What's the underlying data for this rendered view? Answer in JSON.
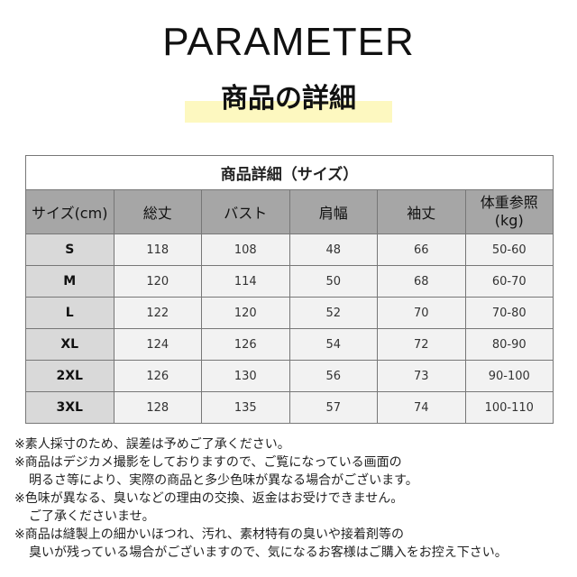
{
  "heading": {
    "title": "PARAMETER",
    "subtitle": "商品の詳細"
  },
  "table": {
    "caption": "商品詳細（サイズ）",
    "headers": [
      "サイズ(cm)",
      "総丈",
      "バスト",
      "肩幅",
      "袖丈",
      "体重参照\n(kg)"
    ],
    "rows": [
      [
        "S",
        "118",
        "108",
        "48",
        "66",
        "50-60"
      ],
      [
        "M",
        "120",
        "114",
        "50",
        "68",
        "60-70"
      ],
      [
        "L",
        "122",
        "120",
        "52",
        "70",
        "70-80"
      ],
      [
        "XL",
        "124",
        "126",
        "54",
        "72",
        "80-90"
      ],
      [
        "2XL",
        "126",
        "130",
        "56",
        "73",
        "90-100"
      ],
      [
        "3XL",
        "128",
        "135",
        "57",
        "74",
        "100-110"
      ]
    ]
  },
  "notes": [
    "※素人採寸のため、誤差は予めご了承ください。",
    "※商品はデジカメ撮影をしておりますので、ご覧になっている画面の",
    "明るさ等により、実際の商品と多少色味が異なる場合がございます。",
    "※色味が異なる、臭いなどの理由の交換、返金はお受けできません。",
    "ご了承くださいませ。",
    "※商品は縫製上の細かいほつれ、汚れ、素材特有の臭いや接着剤等の",
    "臭いが残っている場合がございますので、気になるお客様はご購入をお控え下さい。"
  ],
  "colors": {
    "header_bg": "#a6a6a6",
    "size_col_bg": "#d9d9d9",
    "cell_bg": "#f2f2f2",
    "highlight": "#fdf8c0"
  }
}
